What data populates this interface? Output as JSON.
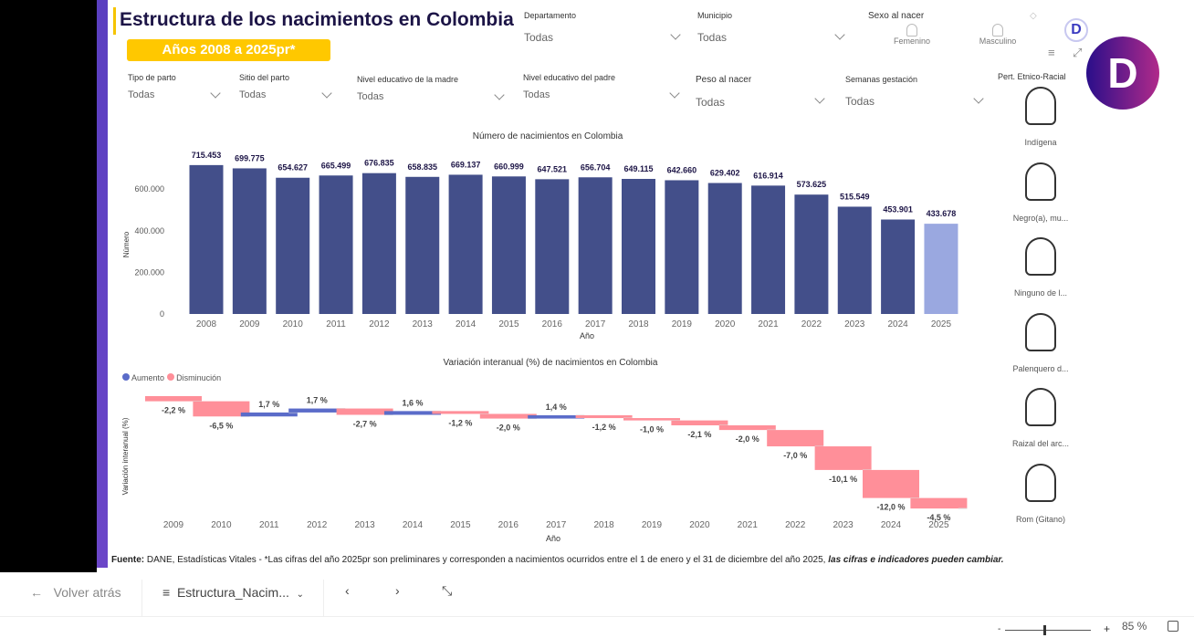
{
  "header": {
    "title": "Estructura de los nacimientos en Colombia",
    "badge": "Años 2008 a 2025pr*"
  },
  "filters": [
    {
      "label": "Departamento",
      "value": "Todas"
    },
    {
      "label": "Municipio",
      "value": "Todas"
    },
    {
      "label": "Tipo de parto",
      "value": "Todas"
    },
    {
      "label": "Sitio del parto",
      "value": "Todas"
    },
    {
      "label": "Nivel educativo de la madre",
      "value": "Todas"
    },
    {
      "label": "Nivel educativo del padre",
      "value": "Todas"
    },
    {
      "label": "Peso al nacer",
      "value": "Todas"
    },
    {
      "label": "Semanas gestación",
      "value": "Todas"
    }
  ],
  "sex": {
    "label": "Sexo al nacer",
    "options": [
      "Femenino",
      "Masculino"
    ]
  },
  "ethnic": {
    "label": "Pert. Etnico-Racial",
    "options": [
      "Indígena",
      "Negro(a), mu...",
      "Ninguno de l...",
      "Palenquero d...",
      "Raizal del arc...",
      "Rom (Gitano)"
    ]
  },
  "colors": {
    "bar": "#434f8a",
    "bar_prelim": "#9aa8e0",
    "increase": "#5b6cc9",
    "decrease": "#ff8f99",
    "accent": "#ffc800",
    "brand": "#6b2ea8"
  },
  "chart_data": [
    {
      "type": "bar",
      "title": "Número de nacimientos en Colombia",
      "xlabel": "Año",
      "ylabel": "Número",
      "categories": [
        "2008",
        "2009",
        "2010",
        "2011",
        "2012",
        "2013",
        "2014",
        "2015",
        "2016",
        "2017",
        "2018",
        "2019",
        "2020",
        "2021",
        "2022",
        "2023",
        "2024",
        "2025"
      ],
      "values": [
        715453,
        699775,
        654627,
        665499,
        676835,
        658835,
        669137,
        660999,
        647521,
        656704,
        649115,
        642660,
        629402,
        616914,
        573625,
        515549,
        453901,
        433678
      ],
      "labels": [
        "715.453",
        "699.775",
        "654.627",
        "665.499",
        "676.835",
        "658.835",
        "669.137",
        "660.999",
        "647.521",
        "656.704",
        "649.115",
        "642.660",
        "629.402",
        "616.914",
        "573.625",
        "515.549",
        "453.901",
        "433.678"
      ],
      "yticks": [
        "0",
        "200.000",
        "400.000",
        "600.000"
      ],
      "ylim": [
        0,
        750000
      ]
    },
    {
      "type": "bar",
      "subtype": "waterfall",
      "title": "Variación interanual (%) de nacimientos en Colombia",
      "xlabel": "Año",
      "ylabel": "Variación interanual (%)",
      "legend": [
        "Aumento",
        "Disminución"
      ],
      "legend_position": "top-left",
      "categories": [
        "2009",
        "2010",
        "2011",
        "2012",
        "2013",
        "2014",
        "2015",
        "2016",
        "2017",
        "2018",
        "2019",
        "2020",
        "2021",
        "2022",
        "2023",
        "2024",
        "2025"
      ],
      "values": [
        -2.2,
        -6.5,
        1.7,
        1.7,
        -2.7,
        1.6,
        -1.2,
        -2.0,
        1.4,
        -1.2,
        -1.0,
        -2.1,
        -2.0,
        -7.0,
        -10.1,
        -12.0,
        -4.5
      ],
      "labels": [
        "-2,2 %",
        "-6,5 %",
        "1,7 %",
        "1,7 %",
        "-2,7 %",
        "1,6 %",
        "-1,2 %",
        "-2,0 %",
        "1,4 %",
        "-1,2 %",
        "-1,0 %",
        "-2,1 %",
        "-2,0 %",
        "-7,0 %",
        "-10,1 %",
        "-12,0 %",
        "-4,5 %"
      ]
    }
  ],
  "footer": {
    "source_bold": "Fuente:",
    "source": " DANE, Estadísticas Vitales - *Las cifras del año 2025pr son preliminares y corresponden a nacimientos ocurridos entre el 1 de enero y el 31 de diciembre del año 2025, ",
    "source_em": "las cifras e indicadores pueden cambiar."
  },
  "nav": {
    "back": "Volver atrás",
    "page": "Estructura_Nacim...",
    "zoom": "85 %"
  }
}
